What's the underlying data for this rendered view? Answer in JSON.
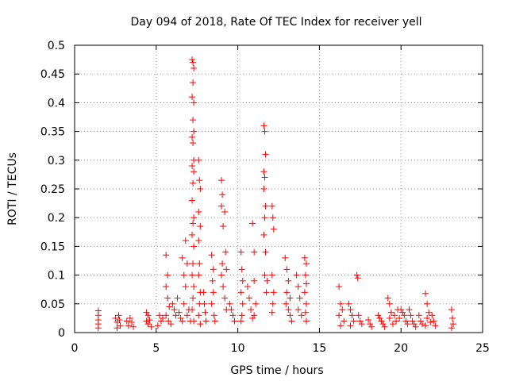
{
  "chart_data": {
    "type": "scatter",
    "title": "Day 094 of 2018, Rate Of TEC Index for receiver yell",
    "xlabel": "GPS time / hours",
    "ylabel": "ROTI / TECUs",
    "xlim": [
      0,
      25
    ],
    "ylim": [
      0,
      0.5
    ],
    "xticks": [
      0,
      5,
      10,
      15,
      20,
      25
    ],
    "xtick_labels": [
      "0",
      "5",
      "10",
      "15",
      "20",
      "25"
    ],
    "yticks": [
      0,
      0.05,
      0.1,
      0.15,
      0.2,
      0.25,
      0.3,
      0.35,
      0.4,
      0.45,
      0.5
    ],
    "ytick_labels": [
      "0",
      "0.05",
      "0.1",
      "0.15",
      "0.2",
      "0.25",
      "0.3",
      "0.35",
      "0.4",
      "0.45",
      "0.5"
    ],
    "grid": true,
    "marker": "+",
    "marker_color": "#ff0000",
    "series": [
      {
        "name": "ROTI",
        "points": [
          [
            1.45,
            0.038
          ],
          [
            1.45,
            0.03
          ],
          [
            1.45,
            0.022
          ],
          [
            1.45,
            0.015
          ],
          [
            1.45,
            0.008
          ],
          [
            2.5,
            0.025
          ],
          [
            2.6,
            0.018
          ],
          [
            2.7,
            0.03
          ],
          [
            2.8,
            0.012
          ],
          [
            2.6,
            0.008
          ],
          [
            2.75,
            0.022
          ],
          [
            3.2,
            0.02
          ],
          [
            3.3,
            0.012
          ],
          [
            3.5,
            0.018
          ],
          [
            3.6,
            0.01
          ],
          [
            3.4,
            0.025
          ],
          [
            4.4,
            0.035
          ],
          [
            4.5,
            0.03
          ],
          [
            4.6,
            0.022
          ],
          [
            4.5,
            0.015
          ],
          [
            4.7,
            0.01
          ],
          [
            4.4,
            0.02
          ],
          [
            5.2,
            0.03
          ],
          [
            5.3,
            0.02
          ],
          [
            5.1,
            0.012
          ],
          [
            5.4,
            0.025
          ],
          [
            5.6,
            0.135
          ],
          [
            5.7,
            0.1
          ],
          [
            5.6,
            0.08
          ],
          [
            5.7,
            0.06
          ],
          [
            5.8,
            0.045
          ],
          [
            5.6,
            0.03
          ],
          [
            5.75,
            0.02
          ],
          [
            5.9,
            0.015
          ],
          [
            6.0,
            0.05
          ],
          [
            6.1,
            0.04
          ],
          [
            6.2,
            0.03
          ],
          [
            6.3,
            0.06
          ],
          [
            6.4,
            0.035
          ],
          [
            6.5,
            0.025
          ],
          [
            6.6,
            0.13
          ],
          [
            6.7,
            0.1
          ],
          [
            6.8,
            0.08
          ],
          [
            6.7,
            0.05
          ],
          [
            6.9,
            0.03
          ],
          [
            6.6,
            0.02
          ],
          [
            6.8,
            0.16
          ],
          [
            6.9,
            0.12
          ],
          [
            7.0,
            0.04
          ],
          [
            7.1,
            0.02
          ],
          [
            7.2,
            0.475
          ],
          [
            7.25,
            0.47
          ],
          [
            7.3,
            0.46
          ],
          [
            7.25,
            0.435
          ],
          [
            7.2,
            0.41
          ],
          [
            7.3,
            0.4
          ],
          [
            7.25,
            0.37
          ],
          [
            7.3,
            0.35
          ],
          [
            7.2,
            0.34
          ],
          [
            7.25,
            0.33
          ],
          [
            7.3,
            0.3
          ],
          [
            7.2,
            0.29
          ],
          [
            7.3,
            0.28
          ],
          [
            7.25,
            0.26
          ],
          [
            7.2,
            0.23
          ],
          [
            7.3,
            0.2
          ],
          [
            7.25,
            0.19
          ],
          [
            7.2,
            0.17
          ],
          [
            7.3,
            0.15
          ],
          [
            7.25,
            0.12
          ],
          [
            7.2,
            0.1
          ],
          [
            7.3,
            0.08
          ],
          [
            7.25,
            0.06
          ],
          [
            7.2,
            0.04
          ],
          [
            7.3,
            0.02
          ],
          [
            7.6,
            0.3
          ],
          [
            7.65,
            0.265
          ],
          [
            7.7,
            0.25
          ],
          [
            7.6,
            0.21
          ],
          [
            7.7,
            0.185
          ],
          [
            7.6,
            0.16
          ],
          [
            7.65,
            0.12
          ],
          [
            7.6,
            0.1
          ],
          [
            7.7,
            0.07
          ],
          [
            7.65,
            0.05
          ],
          [
            7.6,
            0.03
          ],
          [
            7.7,
            0.015
          ],
          [
            7.9,
            0.07
          ],
          [
            7.95,
            0.05
          ],
          [
            8.0,
            0.035
          ],
          [
            8.05,
            0.02
          ],
          [
            8.4,
            0.135
          ],
          [
            8.5,
            0.11
          ],
          [
            8.45,
            0.09
          ],
          [
            8.5,
            0.07
          ],
          [
            8.4,
            0.05
          ],
          [
            8.55,
            0.03
          ],
          [
            8.6,
            0.02
          ],
          [
            9.0,
            0.265
          ],
          [
            9.05,
            0.24
          ],
          [
            9.0,
            0.22
          ],
          [
            9.1,
            0.185
          ],
          [
            9.05,
            0.12
          ],
          [
            9.0,
            0.1
          ],
          [
            9.1,
            0.08
          ],
          [
            9.2,
            0.21
          ],
          [
            9.25,
            0.14
          ],
          [
            9.3,
            0.11
          ],
          [
            9.2,
            0.06
          ],
          [
            9.3,
            0.04
          ],
          [
            9.5,
            0.05
          ],
          [
            9.6,
            0.04
          ],
          [
            9.7,
            0.03
          ],
          [
            9.8,
            0.02
          ],
          [
            10.2,
            0.14
          ],
          [
            10.25,
            0.11
          ],
          [
            10.3,
            0.09
          ],
          [
            10.2,
            0.07
          ],
          [
            10.3,
            0.05
          ],
          [
            10.25,
            0.03
          ],
          [
            10.2,
            0.02
          ],
          [
            10.6,
            0.08
          ],
          [
            10.7,
            0.06
          ],
          [
            10.8,
            0.04
          ],
          [
            10.9,
            0.025
          ],
          [
            10.9,
            0.19
          ],
          [
            11.0,
            0.14
          ],
          [
            11.0,
            0.09
          ],
          [
            11.1,
            0.05
          ],
          [
            11.0,
            0.03
          ],
          [
            11.6,
            0.36
          ],
          [
            11.65,
            0.35
          ],
          [
            11.7,
            0.31
          ],
          [
            11.6,
            0.28
          ],
          [
            11.65,
            0.27
          ],
          [
            11.6,
            0.25
          ],
          [
            11.7,
            0.22
          ],
          [
            11.65,
            0.2
          ],
          [
            11.6,
            0.17
          ],
          [
            11.7,
            0.14
          ],
          [
            11.65,
            0.1
          ],
          [
            11.8,
            0.09
          ],
          [
            11.75,
            0.07
          ],
          [
            12.1,
            0.22
          ],
          [
            12.15,
            0.2
          ],
          [
            12.2,
            0.18
          ],
          [
            12.1,
            0.1
          ],
          [
            12.2,
            0.07
          ],
          [
            12.15,
            0.05
          ],
          [
            12.1,
            0.035
          ],
          [
            12.9,
            0.13
          ],
          [
            13.0,
            0.11
          ],
          [
            13.1,
            0.09
          ],
          [
            13.0,
            0.07
          ],
          [
            13.2,
            0.06
          ],
          [
            12.95,
            0.05
          ],
          [
            13.1,
            0.04
          ],
          [
            13.2,
            0.03
          ],
          [
            13.3,
            0.02
          ],
          [
            13.6,
            0.1
          ],
          [
            13.7,
            0.08
          ],
          [
            13.8,
            0.06
          ],
          [
            13.7,
            0.04
          ],
          [
            13.9,
            0.03
          ],
          [
            14.1,
            0.13
          ],
          [
            14.2,
            0.12
          ],
          [
            14.15,
            0.1
          ],
          [
            14.2,
            0.085
          ],
          [
            14.1,
            0.07
          ],
          [
            14.2,
            0.05
          ],
          [
            14.15,
            0.035
          ],
          [
            14.2,
            0.02
          ],
          [
            16.2,
            0.08
          ],
          [
            16.3,
            0.05
          ],
          [
            16.4,
            0.04
          ],
          [
            16.2,
            0.03
          ],
          [
            16.5,
            0.02
          ],
          [
            16.3,
            0.012
          ],
          [
            16.8,
            0.05
          ],
          [
            16.9,
            0.04
          ],
          [
            17.0,
            0.03
          ],
          [
            17.1,
            0.02
          ],
          [
            16.9,
            0.012
          ],
          [
            17.3,
            0.1
          ],
          [
            17.35,
            0.095
          ],
          [
            17.4,
            0.03
          ],
          [
            17.5,
            0.02
          ],
          [
            17.6,
            0.015
          ],
          [
            18.0,
            0.022
          ],
          [
            18.1,
            0.015
          ],
          [
            18.2,
            0.01
          ],
          [
            18.6,
            0.03
          ],
          [
            18.7,
            0.025
          ],
          [
            18.8,
            0.02
          ],
          [
            18.9,
            0.015
          ],
          [
            19.0,
            0.01
          ],
          [
            19.2,
            0.06
          ],
          [
            19.3,
            0.05
          ],
          [
            19.4,
            0.035
          ],
          [
            19.3,
            0.025
          ],
          [
            19.5,
            0.015
          ],
          [
            19.6,
            0.03
          ],
          [
            19.7,
            0.02
          ],
          [
            19.8,
            0.04
          ],
          [
            19.9,
            0.025
          ],
          [
            20.0,
            0.04
          ],
          [
            20.1,
            0.035
          ],
          [
            20.2,
            0.03
          ],
          [
            20.3,
            0.02
          ],
          [
            20.4,
            0.015
          ],
          [
            20.5,
            0.04
          ],
          [
            20.6,
            0.03
          ],
          [
            20.7,
            0.02
          ],
          [
            20.8,
            0.015
          ],
          [
            20.9,
            0.01
          ],
          [
            21.1,
            0.03
          ],
          [
            21.2,
            0.02
          ],
          [
            21.3,
            0.015
          ],
          [
            21.5,
            0.068
          ],
          [
            21.6,
            0.05
          ],
          [
            21.7,
            0.035
          ],
          [
            21.6,
            0.025
          ],
          [
            21.8,
            0.018
          ],
          [
            21.5,
            0.012
          ],
          [
            21.9,
            0.03
          ],
          [
            22.0,
            0.02
          ],
          [
            22.1,
            0.012
          ],
          [
            23.1,
            0.04
          ],
          [
            23.15,
            0.025
          ],
          [
            23.2,
            0.015
          ],
          [
            23.1,
            0.008
          ]
        ]
      }
    ]
  }
}
